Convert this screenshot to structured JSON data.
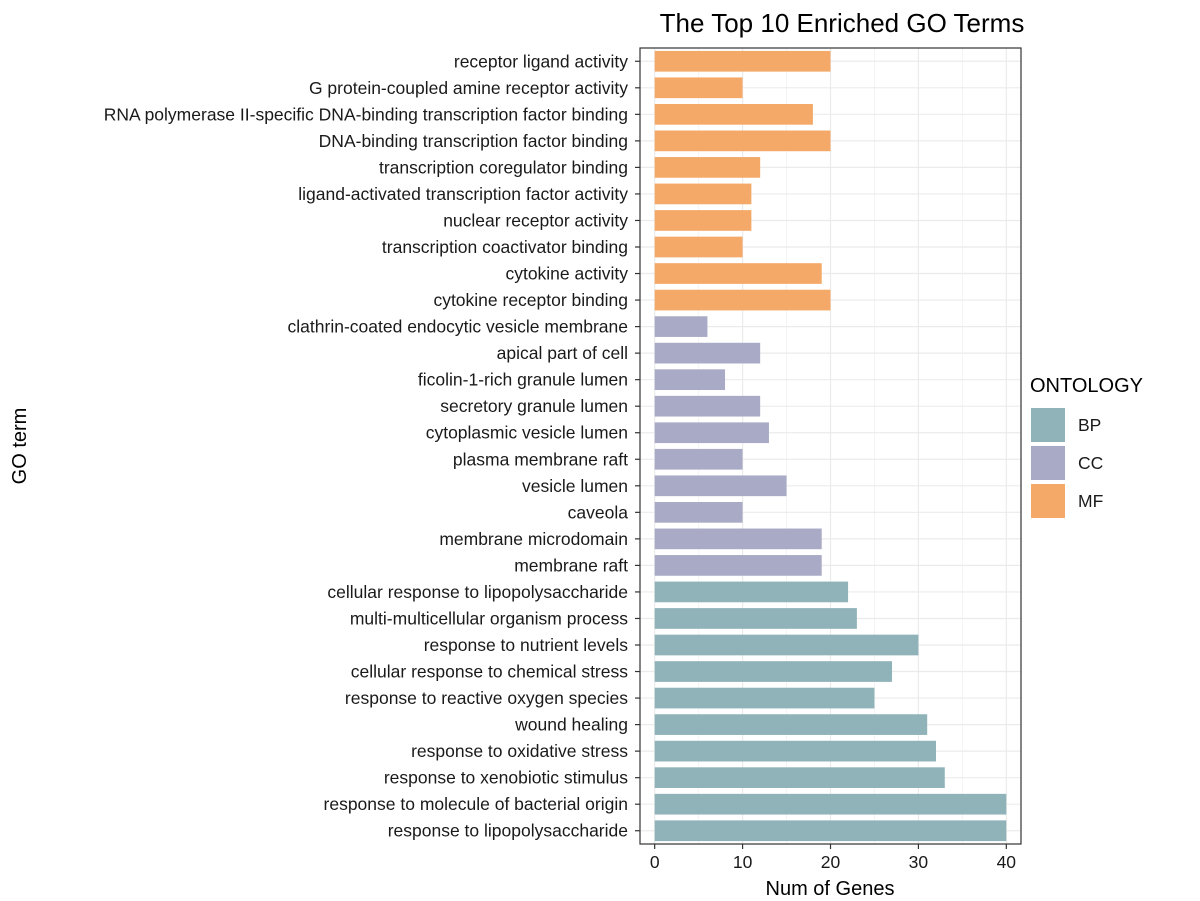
{
  "chart_data": {
    "type": "bar",
    "orientation": "horizontal",
    "title": "The Top 10 Enriched GO Terms",
    "xlabel": "Num of Genes",
    "ylabel": "GO term",
    "xlim": [
      0,
      40
    ],
    "xticks": [
      0,
      10,
      20,
      30,
      40
    ],
    "grid": true,
    "legend": {
      "title": "ONTOLOGY",
      "placement": "right",
      "entries": [
        {
          "name": "BP",
          "color": "#8fb3b9"
        },
        {
          "name": "CC",
          "color": "#a9abc6"
        },
        {
          "name": "MF",
          "color": "#f4a968"
        }
      ]
    },
    "categories": [
      "receptor ligand activity",
      "G protein-coupled amine receptor activity",
      "RNA polymerase II-specific DNA-binding transcription factor binding",
      "DNA-binding transcription factor binding",
      "transcription coregulator binding",
      "ligand-activated transcription factor activity",
      "nuclear receptor activity",
      "transcription coactivator binding",
      "cytokine activity",
      "cytokine receptor binding",
      "clathrin-coated endocytic vesicle membrane",
      "apical part of cell",
      "ficolin-1-rich granule lumen",
      "secretory granule lumen",
      "cytoplasmic vesicle lumen",
      "plasma membrane raft",
      "vesicle lumen",
      "caveola",
      "membrane microdomain",
      "membrane raft",
      "cellular response to lipopolysaccharide",
      "multi-multicellular organism process",
      "response to nutrient levels",
      "cellular response to chemical stress",
      "response to reactive oxygen species",
      "wound healing",
      "response to oxidative stress",
      "response to xenobiotic stimulus",
      "response to molecule of bacterial origin",
      "response to lipopolysaccharide"
    ],
    "values": [
      20,
      10,
      18,
      20,
      12,
      11,
      11,
      10,
      19,
      20,
      6,
      12,
      8,
      12,
      13,
      10,
      15,
      10,
      19,
      19,
      22,
      23,
      30,
      27,
      25,
      31,
      32,
      33,
      40,
      40
    ],
    "groups": [
      "MF",
      "MF",
      "MF",
      "MF",
      "MF",
      "MF",
      "MF",
      "MF",
      "MF",
      "MF",
      "CC",
      "CC",
      "CC",
      "CC",
      "CC",
      "CC",
      "CC",
      "CC",
      "CC",
      "CC",
      "BP",
      "BP",
      "BP",
      "BP",
      "BP",
      "BP",
      "BP",
      "BP",
      "BP",
      "BP"
    ]
  }
}
